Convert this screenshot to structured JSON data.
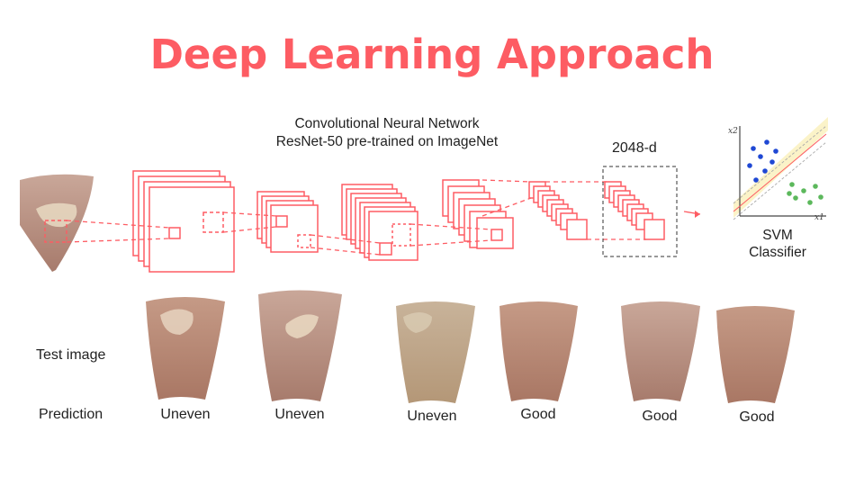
{
  "slide": {
    "title": "Deep Learning Approach",
    "cnn_line1": "Convolutional Neural Network",
    "cnn_line2": "ResNet-50 pre-trained on ImageNet",
    "feature_dim": "2048-d",
    "svm_line1": "SVM",
    "svm_line2": "Classifier",
    "row_test": "Test image",
    "row_prediction": "Prediction"
  },
  "predictions": [
    "Uneven",
    "Uneven",
    "Uneven",
    "Good",
    "Good",
    "Good"
  ],
  "axes": {
    "x": "x1",
    "y": "x2"
  },
  "colors": {
    "accent": "#fd5c63",
    "text": "#222222",
    "points_blue": "#1f48d4",
    "points_green": "#5cb85c",
    "margin_band": "#fbf3c8",
    "skin": "#c89c8a"
  }
}
